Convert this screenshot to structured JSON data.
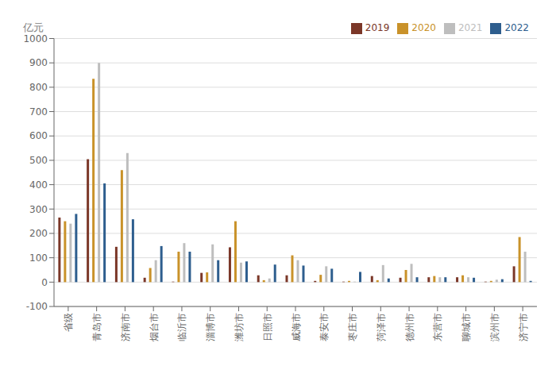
{
  "chart_data": {
    "type": "bar",
    "ylabel": "亿元",
    "categories": [
      "省级",
      "青岛市",
      "济南市",
      "烟台市",
      "临沂市",
      "淄博市",
      "潍坊市",
      "日照市",
      "威海市",
      "泰安市",
      "枣庄市",
      "菏泽市",
      "德州市",
      "东营市",
      "聊城市",
      "滨州市",
      "济宁市"
    ],
    "series": [
      {
        "name": "2019",
        "color": "#7B3728",
        "values": [
          265,
          505,
          145,
          18,
          2,
          38,
          143,
          28,
          28,
          5,
          2,
          25,
          18,
          20,
          20,
          2,
          65
        ]
      },
      {
        "name": "2020",
        "color": "#C9922A",
        "values": [
          250,
          835,
          460,
          58,
          125,
          40,
          250,
          8,
          110,
          30,
          5,
          8,
          50,
          25,
          28,
          5,
          185
        ]
      },
      {
        "name": "2021",
        "color": "#BEBEBE",
        "values": [
          240,
          900,
          530,
          90,
          160,
          155,
          80,
          15,
          90,
          65,
          2,
          70,
          75,
          20,
          20,
          10,
          125
        ]
      },
      {
        "name": "2022",
        "color": "#2E5E8E",
        "values": [
          280,
          405,
          258,
          148,
          125,
          90,
          85,
          72,
          68,
          55,
          42,
          15,
          20,
          20,
          18,
          12,
          5
        ]
      }
    ],
    "ylim": [
      -100,
      1000
    ],
    "yticks": [
      -100,
      0,
      100,
      200,
      300,
      400,
      500,
      600,
      700,
      800,
      900,
      1000
    ],
    "grid": true,
    "legend": "upper right"
  }
}
